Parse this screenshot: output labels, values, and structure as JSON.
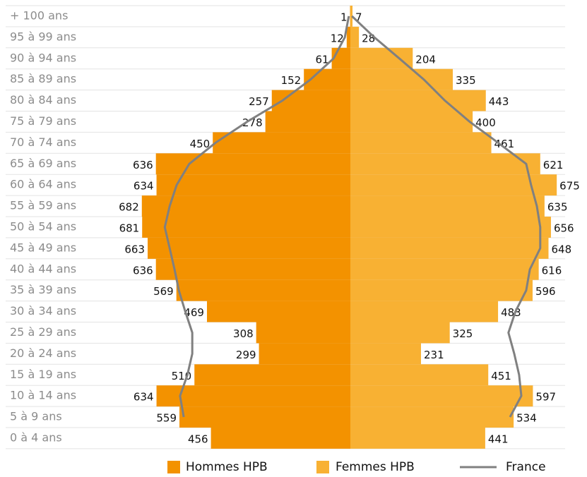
{
  "chart_data": {
    "type": "pyramid",
    "categories": [
      "+ 100 ans",
      "95 à 99 ans",
      "90 à 94 ans",
      "85 à 89 ans",
      "80 à 84 ans",
      "75 à 79 ans",
      "70 à 74 ans",
      "65 à 69 ans",
      "60 à 64 ans",
      "55 à 59 ans",
      "50 à 54 ans",
      "45 à 49 ans",
      "40 à 44 ans",
      "35 à 39 ans",
      "30 à 34 ans",
      "25 à 29 ans",
      "20 à 24 ans",
      "15 à 19 ans",
      "10 à 14 ans",
      "5 à 9 ans",
      "0 à 4 ans"
    ],
    "series": [
      {
        "name": "Hommes HPB",
        "color": "#f39200",
        "values": [
          1,
          12,
          61,
          152,
          257,
          278,
          450,
          636,
          634,
          682,
          681,
          663,
          636,
          569,
          469,
          308,
          299,
          510,
          634,
          559,
          456
        ]
      },
      {
        "name": "Femmes HPB",
        "color": "#f8b133",
        "values": [
          7,
          28,
          204,
          335,
          443,
          400,
          461,
          621,
          675,
          635,
          656,
          648,
          616,
          596,
          483,
          325,
          231,
          451,
          597,
          534,
          441
        ]
      },
      {
        "name": "France",
        "color": "#808080",
        "hommes": [
          5,
          18,
          55,
          130,
          222,
          337,
          441,
          527,
          568,
          591,
          607,
          591,
          575,
          561,
          540,
          517,
          517,
          533,
          557,
          545,
          null
        ],
        "femmes": [
          5,
          78,
          160,
          240,
          309,
          390,
          483,
          575,
          591,
          610,
          621,
          621,
          587,
          575,
          540,
          517,
          536,
          552,
          559,
          522,
          null
        ]
      }
    ],
    "xlim": [
      0,
      700
    ]
  }
}
